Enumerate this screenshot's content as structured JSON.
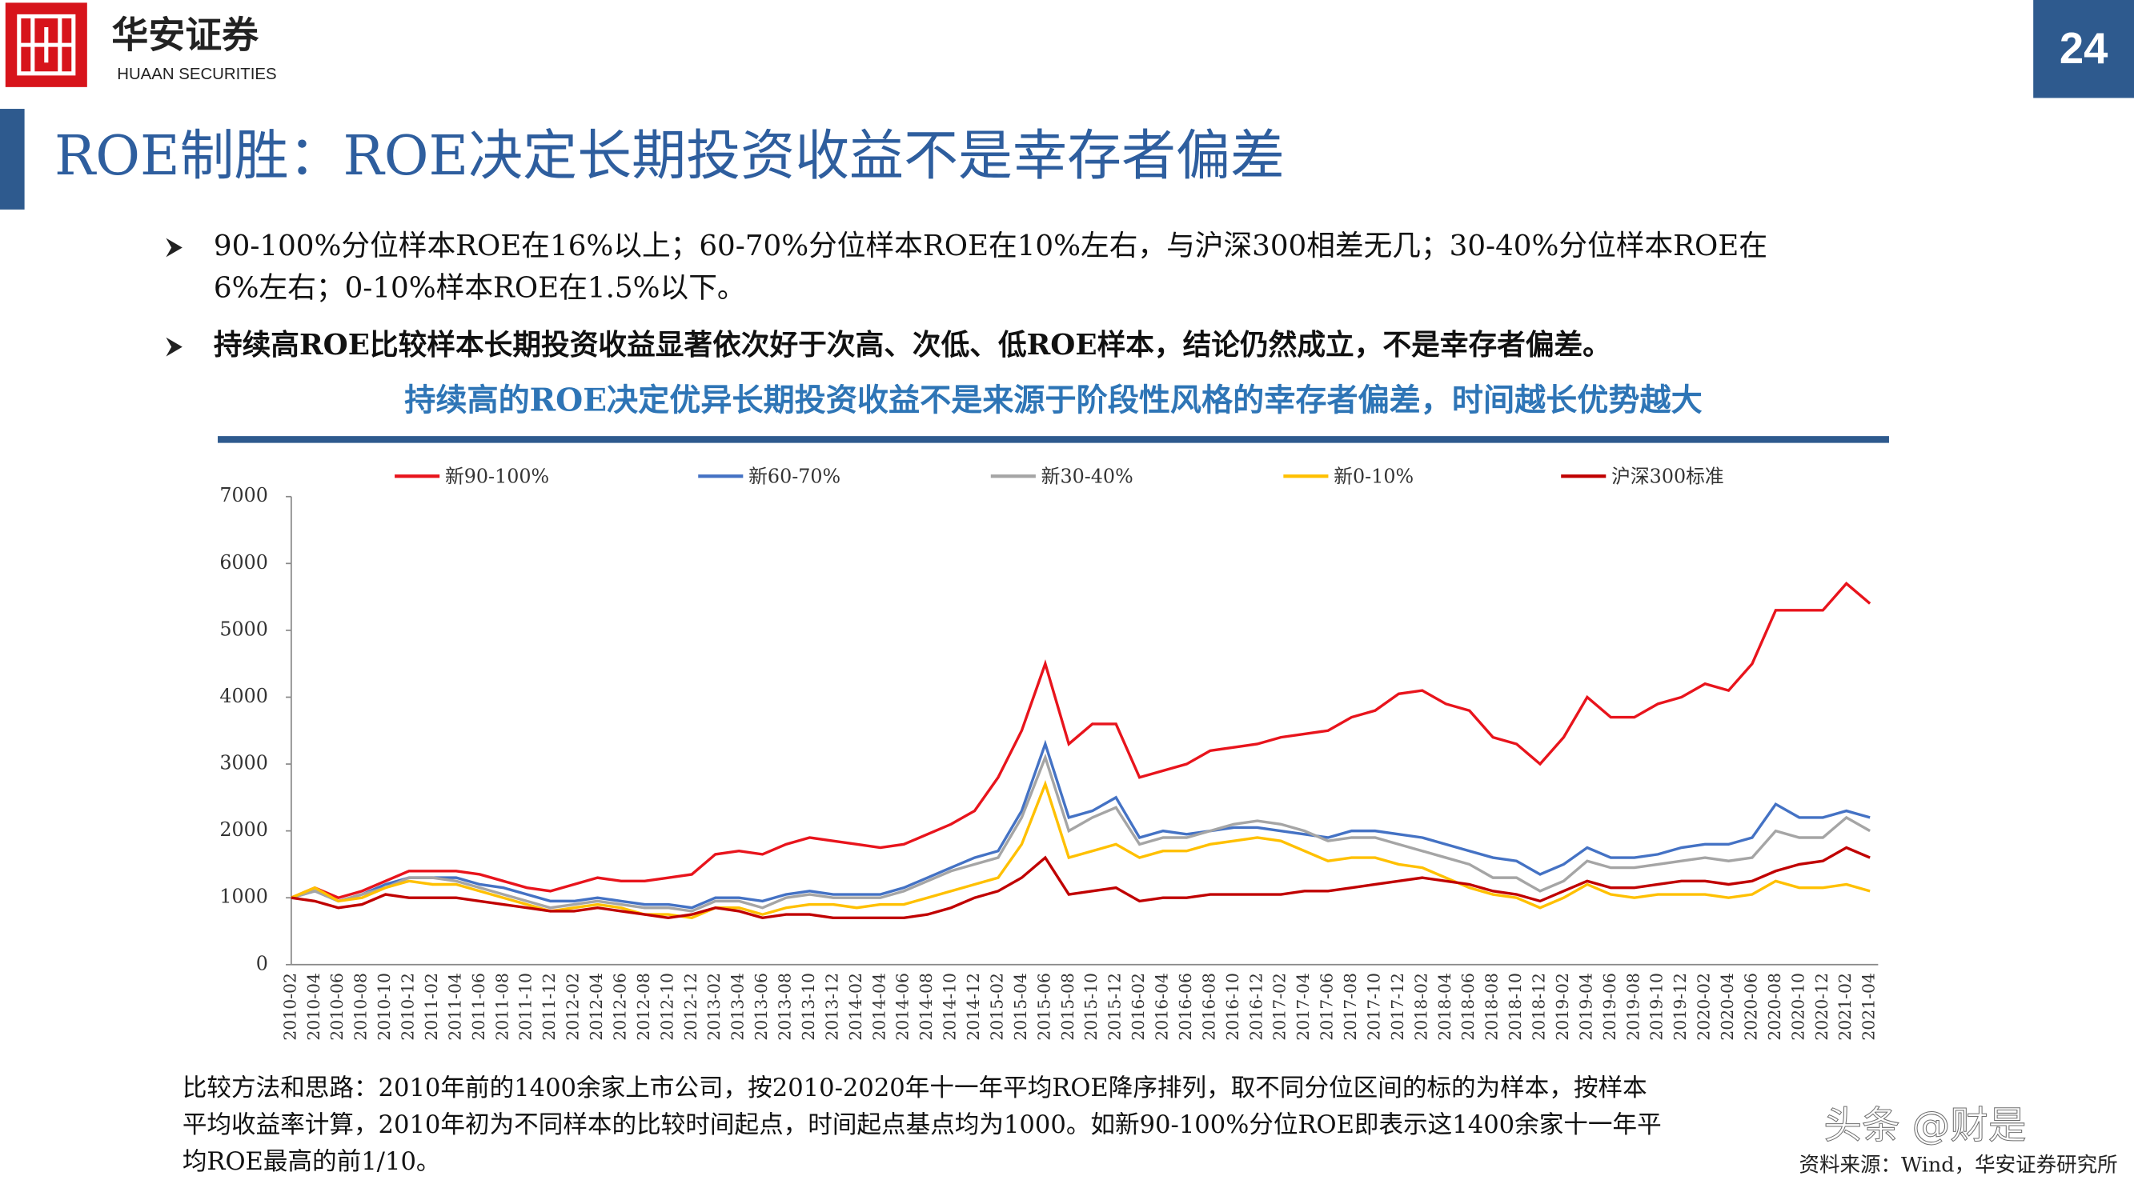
{
  "header": {
    "logo_cn": "华安证券",
    "logo_en": "HUAAN SECURITIES",
    "page_number": "24",
    "title": "ROE制胜：ROE决定长期投资收益不是幸存者偏差"
  },
  "bullets": [
    {
      "lines": [
        "90-100%分位样本ROE在16%以上；60-70%分位样本ROE在10%左右，与沪深300相差无几；30-40%分位样本ROE在",
        "6%左右；0-10%样本ROE在1.5%以下。"
      ]
    },
    {
      "lines": [
        "持续高ROE比较样本长期投资收益显著依次好于次高、次低、低ROE样本，结论仍然成立，不是幸存者偏差。"
      ]
    }
  ],
  "highlight": "持续高的ROE决定优异长期投资收益不是来源于阶段性风格的幸存者偏差，时间越长优势越大",
  "chart_data": {
    "type": "line",
    "categories": [
      "2010-02",
      "2010-04",
      "2010-06",
      "2010-08",
      "2010-10",
      "2010-12",
      "2011-02",
      "2011-04",
      "2011-06",
      "2011-08",
      "2011-10",
      "2011-12",
      "2012-02",
      "2012-04",
      "2012-06",
      "2012-08",
      "2012-10",
      "2012-12",
      "2013-02",
      "2013-04",
      "2013-06",
      "2013-08",
      "2013-10",
      "2013-12",
      "2014-02",
      "2014-04",
      "2014-06",
      "2014-08",
      "2014-10",
      "2014-12",
      "2015-02",
      "2015-04",
      "2015-06",
      "2015-08",
      "2015-10",
      "2015-12",
      "2016-02",
      "2016-04",
      "2016-06",
      "2016-08",
      "2016-10",
      "2016-12",
      "2017-02",
      "2017-04",
      "2017-06",
      "2017-08",
      "2017-10",
      "2017-12",
      "2018-02",
      "2018-04",
      "2018-06",
      "2018-08",
      "2018-10",
      "2018-12",
      "2019-02",
      "2019-04",
      "2019-06",
      "2019-08",
      "2019-10",
      "2019-12",
      "2020-02",
      "2020-04",
      "2020-06",
      "2020-08",
      "2020-10",
      "2020-12",
      "2021-02",
      "2021-04"
    ],
    "series": [
      {
        "name": "新90-100%",
        "color": "#e8141c",
        "values": [
          1000,
          1150,
          1000,
          1100,
          1250,
          1400,
          1400,
          1400,
          1350,
          1250,
          1150,
          1100,
          1200,
          1300,
          1250,
          1250,
          1300,
          1350,
          1650,
          1700,
          1650,
          1800,
          1900,
          1850,
          1800,
          1750,
          1800,
          1950,
          2100,
          2300,
          2800,
          3500,
          4500,
          3300,
          3600,
          3600,
          2800,
          2900,
          3000,
          3200,
          3250,
          3300,
          3400,
          3450,
          3500,
          3700,
          3800,
          4050,
          4100,
          3900,
          3800,
          3400,
          3300,
          3000,
          3400,
          4000,
          3700,
          3700,
          3900,
          4000,
          4200,
          4100,
          4500,
          5300,
          5300,
          5300,
          5700,
          5400
        ]
      },
      {
        "name": "新60-70%",
        "color": "#4472c4",
        "values": [
          1000,
          1100,
          950,
          1050,
          1200,
          1300,
          1300,
          1300,
          1200,
          1150,
          1050,
          950,
          950,
          1000,
          950,
          900,
          900,
          850,
          1000,
          1000,
          950,
          1050,
          1100,
          1050,
          1050,
          1050,
          1150,
          1300,
          1450,
          1600,
          1700,
          2300,
          3300,
          2200,
          2300,
          2500,
          1900,
          2000,
          1950,
          2000,
          2050,
          2050,
          2000,
          1950,
          1900,
          2000,
          2000,
          1950,
          1900,
          1800,
          1700,
          1600,
          1550,
          1350,
          1500,
          1750,
          1600,
          1600,
          1650,
          1750,
          1800,
          1800,
          1900,
          2400,
          2200,
          2200,
          2300,
          2200
        ]
      },
      {
        "name": "新30-40%",
        "color": "#a5a5a5",
        "values": [
          1000,
          1100,
          950,
          1050,
          1150,
          1300,
          1300,
          1250,
          1150,
          1050,
          950,
          850,
          900,
          950,
          900,
          850,
          850,
          800,
          950,
          950,
          850,
          1000,
          1050,
          1000,
          1000,
          1000,
          1100,
          1250,
          1400,
          1500,
          1600,
          2200,
          3100,
          2000,
          2200,
          2350,
          1800,
          1900,
          1900,
          2000,
          2100,
          2150,
          2100,
          2000,
          1850,
          1900,
          1900,
          1800,
          1700,
          1600,
          1500,
          1300,
          1300,
          1100,
          1250,
          1550,
          1450,
          1450,
          1500,
          1550,
          1600,
          1550,
          1600,
          2000,
          1900,
          1900,
          2200,
          2000
        ]
      },
      {
        "name": "新0-10%",
        "color": "#ffc000",
        "values": [
          1000,
          1150,
          950,
          1000,
          1150,
          1250,
          1200,
          1200,
          1100,
          1000,
          900,
          800,
          850,
          900,
          850,
          750,
          750,
          700,
          850,
          850,
          750,
          850,
          900,
          900,
          850,
          900,
          900,
          1000,
          1100,
          1200,
          1300,
          1800,
          2700,
          1600,
          1700,
          1800,
          1600,
          1700,
          1700,
          1800,
          1850,
          1900,
          1850,
          1700,
          1550,
          1600,
          1600,
          1500,
          1450,
          1300,
          1150,
          1050,
          1000,
          850,
          1000,
          1200,
          1050,
          1000,
          1050,
          1050,
          1050,
          1000,
          1050,
          1250,
          1150,
          1150,
          1200,
          1100
        ]
      },
      {
        "name": "沪深300标准",
        "color": "#c00000",
        "values": [
          1000,
          950,
          850,
          900,
          1050,
          1000,
          1000,
          1000,
          950,
          900,
          850,
          800,
          800,
          850,
          800,
          750,
          700,
          750,
          850,
          800,
          700,
          750,
          750,
          700,
          700,
          700,
          700,
          750,
          850,
          1000,
          1100,
          1300,
          1600,
          1050,
          1100,
          1150,
          950,
          1000,
          1000,
          1050,
          1050,
          1050,
          1050,
          1100,
          1100,
          1150,
          1200,
          1250,
          1300,
          1250,
          1200,
          1100,
          1050,
          950,
          1100,
          1250,
          1150,
          1150,
          1200,
          1250,
          1250,
          1200,
          1250,
          1400,
          1500,
          1550,
          1750,
          1600
        ]
      }
    ],
    "ylim": [
      0,
      7000
    ],
    "yticks": [
      0,
      1000,
      2000,
      3000,
      4000,
      5000,
      6000,
      7000
    ],
    "grid": false
  },
  "note": {
    "lines": [
      "比较方法和思路：2010年前的1400余家上市公司，按2010-2020年十一年平均ROE降序排列，取不同分位区间的标的为样本，按样本",
      "平均收益率计算，2010年初为不同样本的比较时间起点，时间起点基点均为1000。如新90-100%分位ROE即表示这1400余家十一年平",
      "均ROE最高的前1/10。"
    ]
  },
  "source": "资料来源：Wind，华安证券研究所",
  "watermark": "头条 @财是"
}
